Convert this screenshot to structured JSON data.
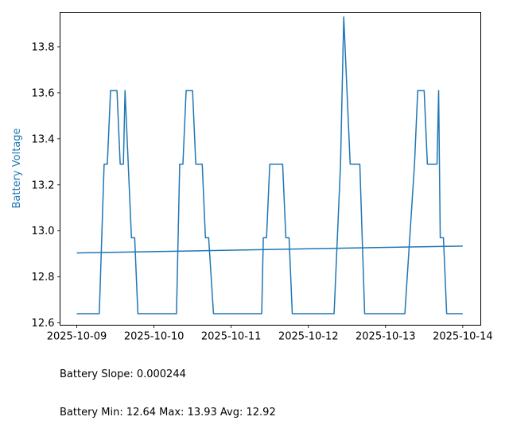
{
  "chart_data": {
    "type": "line",
    "title": "",
    "xlabel": "",
    "ylabel": "Battery Voltage",
    "x_tick_labels": [
      "2025-10-09",
      "2025-10-10",
      "2025-10-11",
      "2025-10-12",
      "2025-10-13",
      "2025-10-14"
    ],
    "y_tick_labels": [
      "12.6",
      "12.8",
      "13.0",
      "13.2",
      "13.4",
      "13.6",
      "13.8"
    ],
    "xlim": [
      "2025-10-08 18:48",
      "2025-10-14 05:36"
    ],
    "ylim": [
      12.59,
      13.95
    ],
    "grid": false,
    "legend": "none",
    "colors": {
      "line": "#1f77b4",
      "ylabel": "#1f77b4"
    },
    "series": [
      {
        "points": [
          [
            "2025-10-09 00:00",
            12.64
          ],
          [
            "2025-10-09 07:00",
            12.64
          ],
          [
            "2025-10-09 08:30",
            13.29
          ],
          [
            "2025-10-09 09:30",
            13.29
          ],
          [
            "2025-10-09 10:30",
            13.61
          ],
          [
            "2025-10-09 12:30",
            13.61
          ],
          [
            "2025-10-09 13:30",
            13.29
          ],
          [
            "2025-10-09 14:30",
            13.29
          ],
          [
            "2025-10-09 15:00",
            13.61
          ],
          [
            "2025-10-09 17:00",
            12.97
          ],
          [
            "2025-10-09 18:00",
            12.97
          ],
          [
            "2025-10-09 19:00",
            12.64
          ],
          [
            "2025-10-10 07:00",
            12.64
          ],
          [
            "2025-10-10 08:00",
            13.29
          ],
          [
            "2025-10-10 09:00",
            13.29
          ],
          [
            "2025-10-10 10:00",
            13.61
          ],
          [
            "2025-10-10 12:00",
            13.61
          ],
          [
            "2025-10-10 13:00",
            13.29
          ],
          [
            "2025-10-10 15:00",
            13.29
          ],
          [
            "2025-10-10 16:00",
            12.97
          ],
          [
            "2025-10-10 17:00",
            12.97
          ],
          [
            "2025-10-10 18:30",
            12.64
          ],
          [
            "2025-10-11 09:30",
            12.64
          ],
          [
            "2025-10-11 10:00",
            12.97
          ],
          [
            "2025-10-11 11:00",
            12.97
          ],
          [
            "2025-10-11 12:00",
            13.29
          ],
          [
            "2025-10-11 16:00",
            13.29
          ],
          [
            "2025-10-11 17:00",
            12.97
          ],
          [
            "2025-10-11 18:00",
            12.97
          ],
          [
            "2025-10-11 19:00",
            12.64
          ],
          [
            "2025-10-12 08:00",
            12.64
          ],
          [
            "2025-10-12 10:00",
            13.29
          ],
          [
            "2025-10-12 11:00",
            13.93
          ],
          [
            "2025-10-12 12:00",
            13.61
          ],
          [
            "2025-10-12 13:00",
            13.29
          ],
          [
            "2025-10-12 16:00",
            13.29
          ],
          [
            "2025-10-12 17:30",
            12.64
          ],
          [
            "2025-10-13 06:00",
            12.64
          ],
          [
            "2025-10-13 09:00",
            13.29
          ],
          [
            "2025-10-13 10:00",
            13.61
          ],
          [
            "2025-10-13 12:00",
            13.61
          ],
          [
            "2025-10-13 13:00",
            13.29
          ],
          [
            "2025-10-13 16:00",
            13.29
          ],
          [
            "2025-10-13 16:30",
            13.61
          ],
          [
            "2025-10-13 17:00",
            12.97
          ],
          [
            "2025-10-13 18:00",
            12.97
          ],
          [
            "2025-10-13 19:00",
            12.64
          ],
          [
            "2025-10-14 00:00",
            12.64
          ]
        ]
      },
      {
        "points": [
          [
            "2025-10-09 00:00",
            12.904
          ],
          [
            "2025-10-14 00:00",
            12.934
          ]
        ]
      }
    ]
  },
  "stats": {
    "slope_line": "Battery Slope: 0.000244",
    "minmax_line": "Battery Min: 12.64 Max: 13.93 Avg: 12.92"
  }
}
